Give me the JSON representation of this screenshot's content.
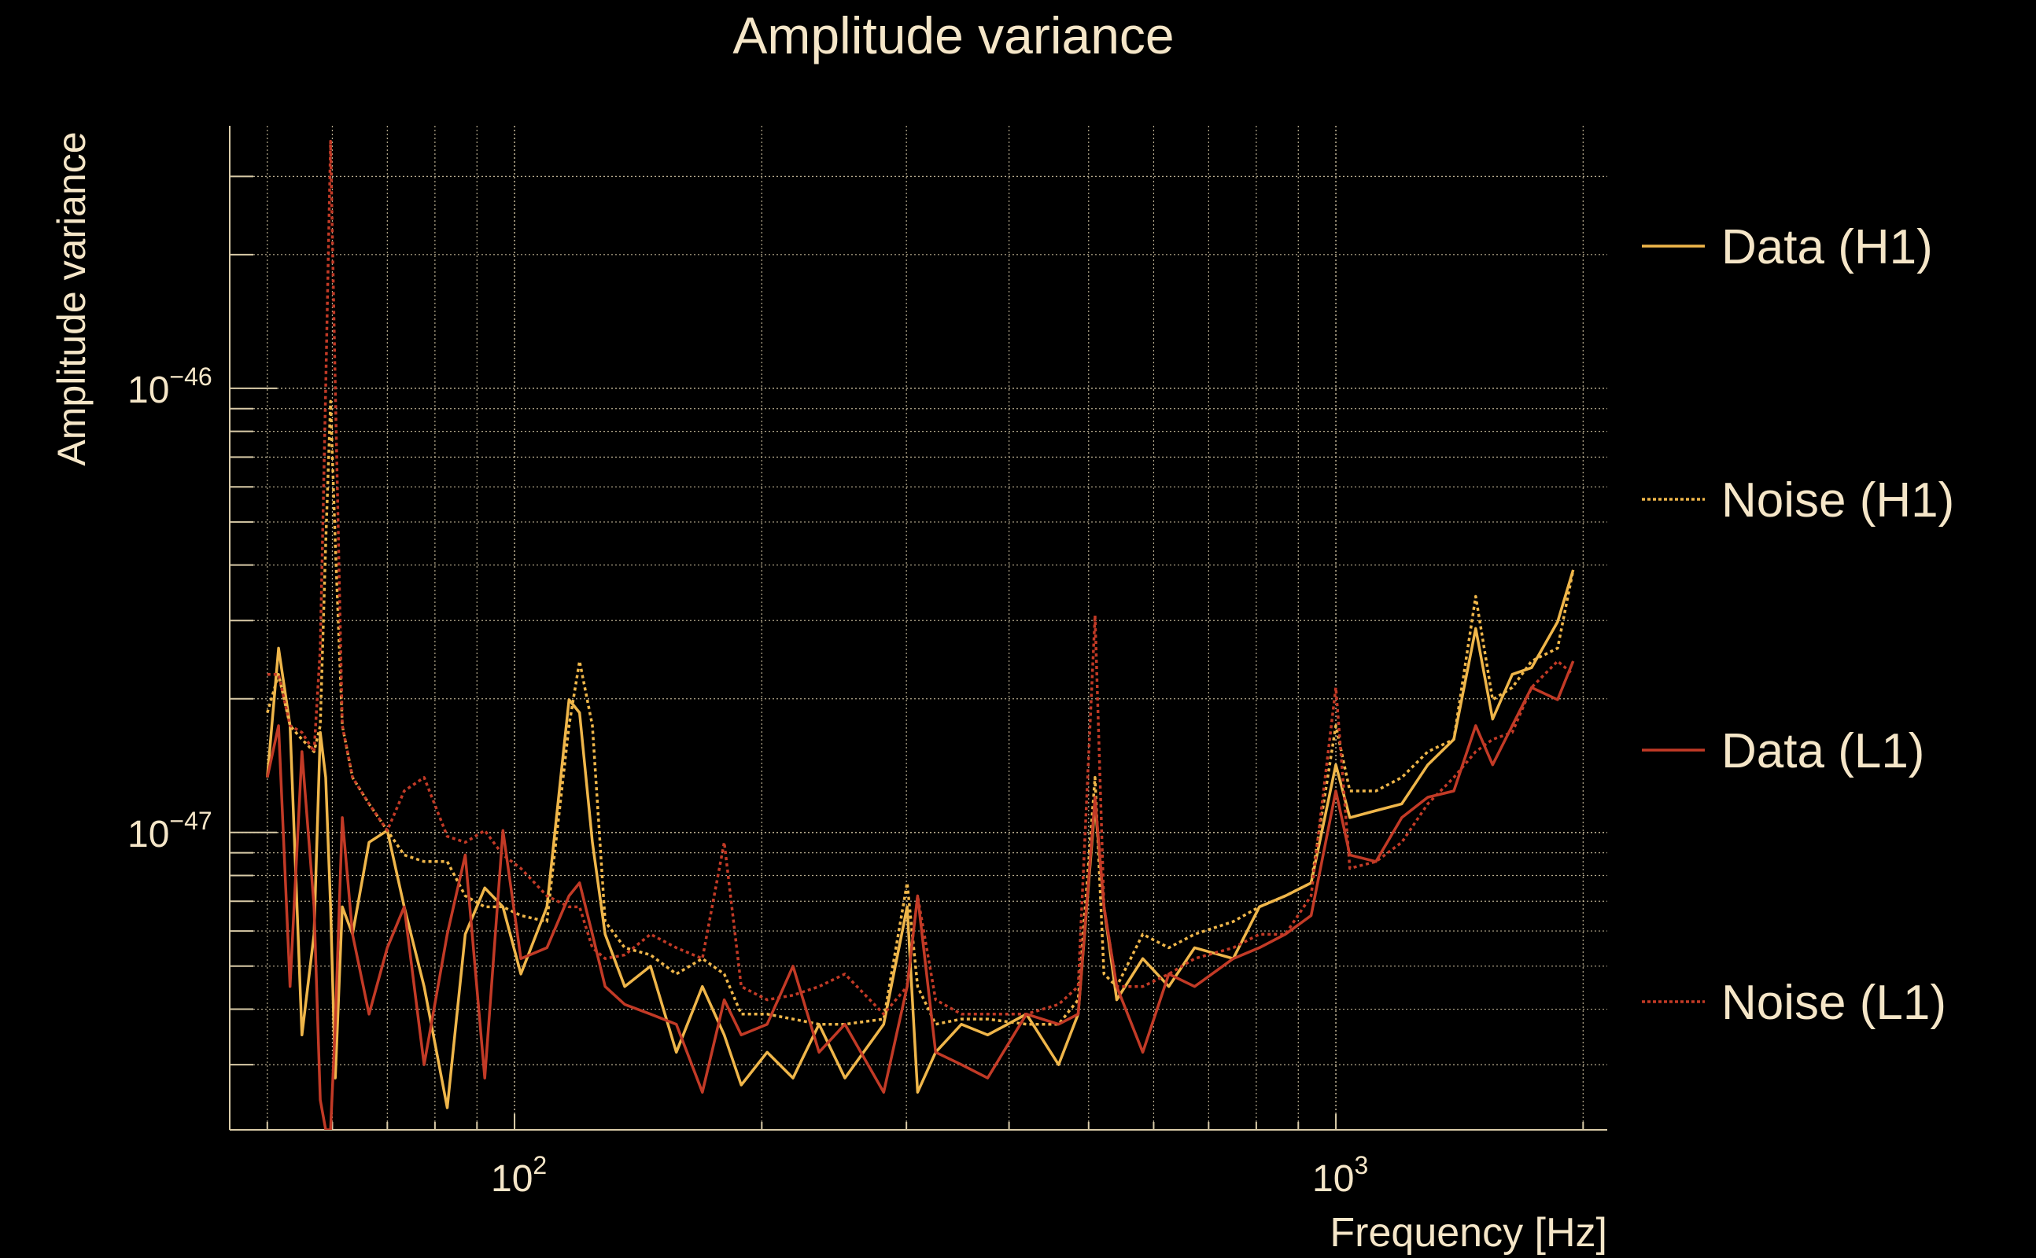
{
  "chart_data": {
    "type": "line",
    "title": "Amplitude variance",
    "xlabel": "Frequency [Hz]",
    "ylabel": "Amplitude variance",
    "xscale": "log",
    "yscale": "log",
    "xlim": [
      45,
      2140
    ],
    "ylim": [
      2.14e-48,
      3.9e-46
    ],
    "y_unit_multiplier": 1e-47,
    "grid": true,
    "legend_position": "right",
    "x_ticks": [
      {
        "value": 100,
        "base": "10",
        "exp": "2"
      },
      {
        "value": 1000,
        "base": "10",
        "exp": "3"
      }
    ],
    "y_ticks": [
      {
        "value": 1e-47,
        "base": "10",
        "exp": "−47"
      },
      {
        "value": 1e-46,
        "base": "10",
        "exp": "−46"
      }
    ],
    "x": [
      50,
      51.6,
      53.3,
      55.1,
      57,
      58,
      58.9,
      59.7,
      60.5,
      61.7,
      63.5,
      66.5,
      70,
      73.4,
      77.6,
      82.8,
      87.1,
      92,
      96.8,
      101.8,
      109.5,
      116.5,
      120,
      124.4,
      128.9,
      136.2,
      146.4,
      157.4,
      169.3,
      180,
      188.8,
      203,
      218.3,
      234.8,
      252.5,
      281.5,
      300.6,
      309.6,
      325.6,
      350,
      376.7,
      420,
      459.6,
      485.6,
      509,
      522,
      541,
      582,
      626,
      673,
      750,
      807,
      868,
      933,
      1000,
      1040,
      1119,
      1203,
      1294,
      1392,
      1480,
      1552,
      1640,
      1731,
      1862,
      1945
    ],
    "series": [
      {
        "name": "Data (H1)",
        "color": "#efb64a",
        "style": "solid",
        "values": [
          1.33,
          2.6,
          1.74,
          0.35,
          0.59,
          1.68,
          1.33,
          0.68,
          0.28,
          0.68,
          0.59,
          0.95,
          1.01,
          0.68,
          0.45,
          0.24,
          0.59,
          0.75,
          0.68,
          0.48,
          0.68,
          1.99,
          1.86,
          0.95,
          0.59,
          0.45,
          0.5,
          0.32,
          0.45,
          0.35,
          0.27,
          0.32,
          0.28,
          0.37,
          0.28,
          0.37,
          0.68,
          0.26,
          0.32,
          0.37,
          0.35,
          0.39,
          0.3,
          0.39,
          1.16,
          0.68,
          0.42,
          0.52,
          0.45,
          0.55,
          0.52,
          0.68,
          0.72,
          0.77,
          1.42,
          1.08,
          1.12,
          1.16,
          1.42,
          1.62,
          2.88,
          1.8,
          2.27,
          2.35,
          2.98,
          3.9
        ]
      },
      {
        "name": "Noise (H1)",
        "color": "#efb64a",
        "style": "dotted",
        "values": [
          1.86,
          2.27,
          1.74,
          1.62,
          1.52,
          1.74,
          4.46,
          9.35,
          4.46,
          1.74,
          1.33,
          1.16,
          1.01,
          0.89,
          0.86,
          0.86,
          0.72,
          0.68,
          0.68,
          0.65,
          0.63,
          1.74,
          2.43,
          1.74,
          0.63,
          0.55,
          0.53,
          0.48,
          0.52,
          0.48,
          0.39,
          0.39,
          0.38,
          0.37,
          0.37,
          0.38,
          0.77,
          0.45,
          0.37,
          0.38,
          0.38,
          0.37,
          0.37,
          0.42,
          1.33,
          0.48,
          0.45,
          0.59,
          0.55,
          0.59,
          0.63,
          0.68,
          0.72,
          0.77,
          1.74,
          1.24,
          1.24,
          1.33,
          1.52,
          1.62,
          3.4,
          1.99,
          2.12,
          2.43,
          2.6,
          3.9
        ]
      },
      {
        "name": "Data (L1)",
        "color": "#c23a26",
        "style": "solid",
        "values": [
          1.33,
          1.74,
          0.45,
          1.52,
          0.68,
          0.25,
          0.214,
          0.214,
          0.37,
          1.08,
          0.59,
          0.39,
          0.55,
          0.68,
          0.3,
          0.59,
          0.89,
          0.28,
          1.01,
          0.52,
          0.55,
          0.72,
          0.77,
          0.59,
          0.45,
          0.41,
          0.39,
          0.37,
          0.26,
          0.42,
          0.35,
          0.37,
          0.5,
          0.32,
          0.37,
          0.26,
          0.45,
          0.72,
          0.32,
          0.3,
          0.28,
          0.39,
          0.37,
          0.39,
          1.2,
          0.68,
          0.45,
          0.32,
          0.48,
          0.45,
          0.52,
          0.55,
          0.59,
          0.65,
          1.24,
          0.89,
          0.86,
          1.08,
          1.2,
          1.24,
          1.74,
          1.42,
          1.74,
          2.12,
          1.99,
          2.43
        ]
      },
      {
        "name": "Noise (L1)",
        "color": "#c23a26",
        "style": "dotted",
        "values": [
          2.27,
          2.27,
          1.74,
          1.68,
          1.52,
          2.6,
          10,
          36,
          10,
          1.74,
          1.33,
          1.16,
          1.01,
          1.24,
          1.33,
          0.98,
          0.95,
          1.01,
          0.89,
          0.83,
          0.72,
          0.68,
          0.68,
          0.55,
          0.52,
          0.53,
          0.59,
          0.55,
          0.52,
          0.95,
          0.45,
          0.42,
          0.43,
          0.45,
          0.48,
          0.39,
          0.45,
          0.72,
          0.42,
          0.39,
          0.39,
          0.39,
          0.41,
          0.45,
          3.08,
          0.68,
          0.45,
          0.45,
          0.48,
          0.52,
          0.55,
          0.59,
          0.59,
          0.72,
          2.12,
          0.83,
          0.86,
          0.95,
          1.16,
          1.33,
          1.52,
          1.62,
          1.68,
          2.12,
          2.43,
          2.27
        ]
      }
    ]
  }
}
